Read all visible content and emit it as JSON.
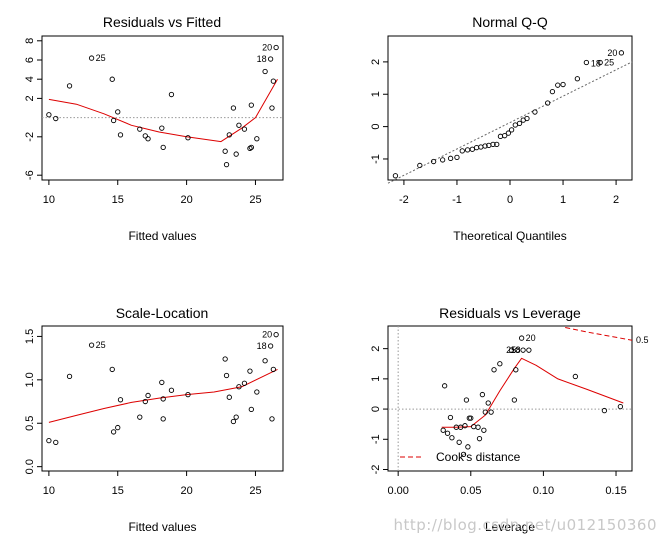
{
  "watermark": "http://blog.csdn.net/u012150360",
  "colors": {
    "fit": "#dd0000",
    "ref": "#999999",
    "axis": "#000000"
  },
  "chart_data": [
    {
      "type": "scatter",
      "title": "Residuals vs Fitted",
      "xlabel": "Fitted values",
      "ylabel": "",
      "xlim": [
        9.5,
        27
      ],
      "ylim": [
        -6.5,
        8.5
      ],
      "xticks": [
        10,
        15,
        20,
        25
      ],
      "yticks": [
        -6,
        -2,
        2,
        4,
        6,
        8
      ],
      "hline": 0,
      "points": [
        [
          10,
          0.3
        ],
        [
          10.5,
          -0.1
        ],
        [
          11.5,
          3.3
        ],
        [
          14.6,
          4
        ],
        [
          14.7,
          -0.3
        ],
        [
          15,
          0.6
        ],
        [
          15.2,
          -1.8
        ],
        [
          16.6,
          -1.2
        ],
        [
          17,
          -1.9
        ],
        [
          17.2,
          -2.2
        ],
        [
          18.2,
          -1.1
        ],
        [
          18.3,
          -3.1
        ],
        [
          18.9,
          2.4
        ],
        [
          20.1,
          -2.1
        ],
        [
          22.8,
          -3.5
        ],
        [
          22.9,
          -4.9
        ],
        [
          23.1,
          -1.8
        ],
        [
          23.4,
          1
        ],
        [
          23.6,
          -3.8
        ],
        [
          23.8,
          -0.8
        ],
        [
          24.2,
          -1.2
        ],
        [
          24.6,
          -3.2
        ],
        [
          24.7,
          -3.1
        ],
        [
          24.7,
          1.3
        ],
        [
          25.1,
          -2.2
        ],
        [
          25.7,
          4.8
        ],
        [
          26.2,
          1
        ],
        [
          26.3,
          3.8
        ],
        [
          13.1,
          6.2
        ],
        [
          26.1,
          6.1
        ],
        [
          26.5,
          7.3
        ]
      ],
      "smooth": [
        [
          10,
          1.9
        ],
        [
          12,
          1.4
        ],
        [
          14,
          0.4
        ],
        [
          16,
          -0.8
        ],
        [
          18,
          -1.5
        ],
        [
          20,
          -2
        ],
        [
          22.5,
          -2.5
        ],
        [
          24,
          -1.1
        ],
        [
          25,
          0
        ],
        [
          26.6,
          4
        ]
      ],
      "labels": [
        {
          "text": "25",
          "x": 13.1,
          "y": 6.2,
          "side": "right"
        },
        {
          "text": "18",
          "x": 26.1,
          "y": 6.1,
          "side": "left"
        },
        {
          "text": "20",
          "x": 26.5,
          "y": 7.3,
          "side": "left"
        }
      ]
    },
    {
      "type": "scatter",
      "title": "Normal Q-Q",
      "xlabel": "Theoretical Quantiles",
      "ylabel": "",
      "xlim": [
        -2.3,
        2.3
      ],
      "ylim": [
        -1.65,
        2.8
      ],
      "xticks": [
        -2,
        -1,
        0,
        1,
        2
      ],
      "yticks": [
        -1,
        0,
        1,
        2
      ],
      "refline": [
        [
          -2.3,
          -1.75
        ],
        [
          2.3,
          2.0
        ]
      ],
      "points": [
        [
          -2.16,
          -1.52
        ],
        [
          -1.7,
          -1.2
        ],
        [
          -1.44,
          -1.08
        ],
        [
          -1.27,
          -1.03
        ],
        [
          -1.12,
          -0.98
        ],
        [
          -1.0,
          -0.95
        ],
        [
          -0.9,
          -0.75
        ],
        [
          -0.8,
          -0.72
        ],
        [
          -0.71,
          -0.7
        ],
        [
          -0.63,
          -0.65
        ],
        [
          -0.55,
          -0.63
        ],
        [
          -0.47,
          -0.6
        ],
        [
          -0.4,
          -0.58
        ],
        [
          -0.32,
          -0.55
        ],
        [
          -0.25,
          -0.55
        ],
        [
          -0.18,
          -0.3
        ],
        [
          -0.1,
          -0.28
        ],
        [
          -0.03,
          -0.2
        ],
        [
          0.03,
          -0.1
        ],
        [
          0.1,
          0.05
        ],
        [
          0.18,
          0.1
        ],
        [
          0.25,
          0.2
        ],
        [
          0.32,
          0.25
        ],
        [
          0.47,
          0.45
        ],
        [
          0.71,
          0.73
        ],
        [
          0.8,
          1.08
        ],
        [
          0.9,
          1.28
        ],
        [
          1.0,
          1.3
        ],
        [
          1.27,
          1.48
        ],
        [
          1.44,
          1.98
        ],
        [
          1.7,
          1.98
        ],
        [
          2.1,
          2.28
        ]
      ],
      "labels": [
        {
          "text": "20",
          "x": 2.1,
          "y": 2.28,
          "side": "left"
        },
        {
          "text": "18",
          "x": 1.62,
          "y": 1.95,
          "side": "center"
        },
        {
          "text": "25",
          "x": 1.7,
          "y": 1.98,
          "side": "right"
        }
      ]
    },
    {
      "type": "scatter",
      "title": "Scale-Location",
      "xlabel": "Fitted values",
      "ylabel": "",
      "xlim": [
        9.5,
        27
      ],
      "ylim": [
        -0.05,
        1.62
      ],
      "xticks": [
        10,
        15,
        20,
        25
      ],
      "yticks": [
        0.0,
        0.5,
        1.0,
        1.5
      ],
      "points": [
        [
          10,
          0.3
        ],
        [
          10.5,
          0.28
        ],
        [
          11.5,
          1.04
        ],
        [
          14.6,
          1.12
        ],
        [
          14.7,
          0.4
        ],
        [
          15,
          0.45
        ],
        [
          15.2,
          0.77
        ],
        [
          16.6,
          0.57
        ],
        [
          17,
          0.75
        ],
        [
          17.2,
          0.82
        ],
        [
          18.2,
          0.97
        ],
        [
          18.3,
          0.78
        ],
        [
          18.3,
          0.55
        ],
        [
          18.9,
          0.88
        ],
        [
          20.1,
          0.83
        ],
        [
          22.8,
          1.24
        ],
        [
          22.9,
          1.05
        ],
        [
          23.1,
          0.8
        ],
        [
          23.4,
          0.52
        ],
        [
          23.6,
          0.57
        ],
        [
          23.8,
          0.92
        ],
        [
          24.2,
          0.96
        ],
        [
          24.6,
          1.1
        ],
        [
          24.7,
          0.66
        ],
        [
          25.1,
          0.86
        ],
        [
          25.7,
          1.22
        ],
        [
          26.2,
          0.55
        ],
        [
          26.3,
          1.12
        ],
        [
          13.1,
          1.4
        ],
        [
          26.1,
          1.39
        ],
        [
          26.5,
          1.52
        ]
      ],
      "smooth": [
        [
          10,
          0.51
        ],
        [
          12,
          0.59
        ],
        [
          14,
          0.67
        ],
        [
          16,
          0.74
        ],
        [
          18,
          0.79
        ],
        [
          20,
          0.83
        ],
        [
          22,
          0.86
        ],
        [
          24,
          0.92
        ],
        [
          26.6,
          1.12
        ]
      ],
      "labels": [
        {
          "text": "25",
          "x": 13.1,
          "y": 1.4,
          "side": "right"
        },
        {
          "text": "18",
          "x": 26.1,
          "y": 1.39,
          "side": "left"
        },
        {
          "text": "20",
          "x": 26.5,
          "y": 1.52,
          "side": "left"
        }
      ]
    },
    {
      "type": "scatter",
      "title": "Residuals vs Leverage",
      "xlabel": "Leverage",
      "ylabel": "",
      "xlim": [
        -0.007,
        0.161
      ],
      "ylim": [
        -2.05,
        2.75
      ],
      "xticks": [
        0.0,
        0.05,
        0.1,
        0.15
      ],
      "yticks": [
        -2,
        -1,
        0,
        1,
        2
      ],
      "hline": 0,
      "vline": 0,
      "points": [
        [
          0.031,
          -0.7
        ],
        [
          0.032,
          0.77
        ],
        [
          0.034,
          -0.8
        ],
        [
          0.036,
          -0.28
        ],
        [
          0.037,
          -0.95
        ],
        [
          0.04,
          -0.6
        ],
        [
          0.042,
          -1.1
        ],
        [
          0.043,
          -0.6
        ],
        [
          0.045,
          -1.5
        ],
        [
          0.046,
          -0.55
        ],
        [
          0.047,
          0.3
        ],
        [
          0.048,
          -1.25
        ],
        [
          0.049,
          -0.3
        ],
        [
          0.05,
          -0.3
        ],
        [
          0.052,
          -0.58
        ],
        [
          0.055,
          -0.6
        ],
        [
          0.056,
          -0.98
        ],
        [
          0.058,
          0.48
        ],
        [
          0.059,
          -0.7
        ],
        [
          0.06,
          -0.1
        ],
        [
          0.062,
          0.2
        ],
        [
          0.064,
          -0.1
        ],
        [
          0.066,
          1.3
        ],
        [
          0.07,
          1.5
        ],
        [
          0.078,
          1.95
        ],
        [
          0.08,
          0.3
        ],
        [
          0.081,
          1.3
        ],
        [
          0.082,
          1.95
        ],
        [
          0.085,
          2.35
        ],
        [
          0.086,
          1.95
        ],
        [
          0.09,
          1.95
        ],
        [
          0.122,
          1.08
        ],
        [
          0.142,
          -0.05
        ],
        [
          0.153,
          0.08
        ]
      ],
      "smooth": [
        [
          0.03,
          -0.6
        ],
        [
          0.04,
          -0.6
        ],
        [
          0.05,
          -0.58
        ],
        [
          0.06,
          -0.2
        ],
        [
          0.07,
          0.6
        ],
        [
          0.08,
          1.35
        ],
        [
          0.085,
          1.68
        ],
        [
          0.095,
          1.45
        ],
        [
          0.11,
          1.0
        ],
        [
          0.13,
          0.65
        ],
        [
          0.155,
          0.2
        ]
      ],
      "cook_contour": [
        [
          0.115,
          2.7
        ],
        [
          0.13,
          2.55
        ],
        [
          0.145,
          2.42
        ],
        [
          0.161,
          2.28
        ]
      ],
      "cook_label": "0.5",
      "legend": {
        "label": "Cook's distance",
        "position": "bottom-left"
      },
      "labels": [
        {
          "text": "20",
          "x": 0.085,
          "y": 2.35,
          "side": "right"
        },
        {
          "text": "25",
          "x": 0.084,
          "y": 1.95,
          "side": "left"
        },
        {
          "text": "18",
          "x": 0.087,
          "y": 1.95,
          "side": "left"
        }
      ]
    }
  ]
}
